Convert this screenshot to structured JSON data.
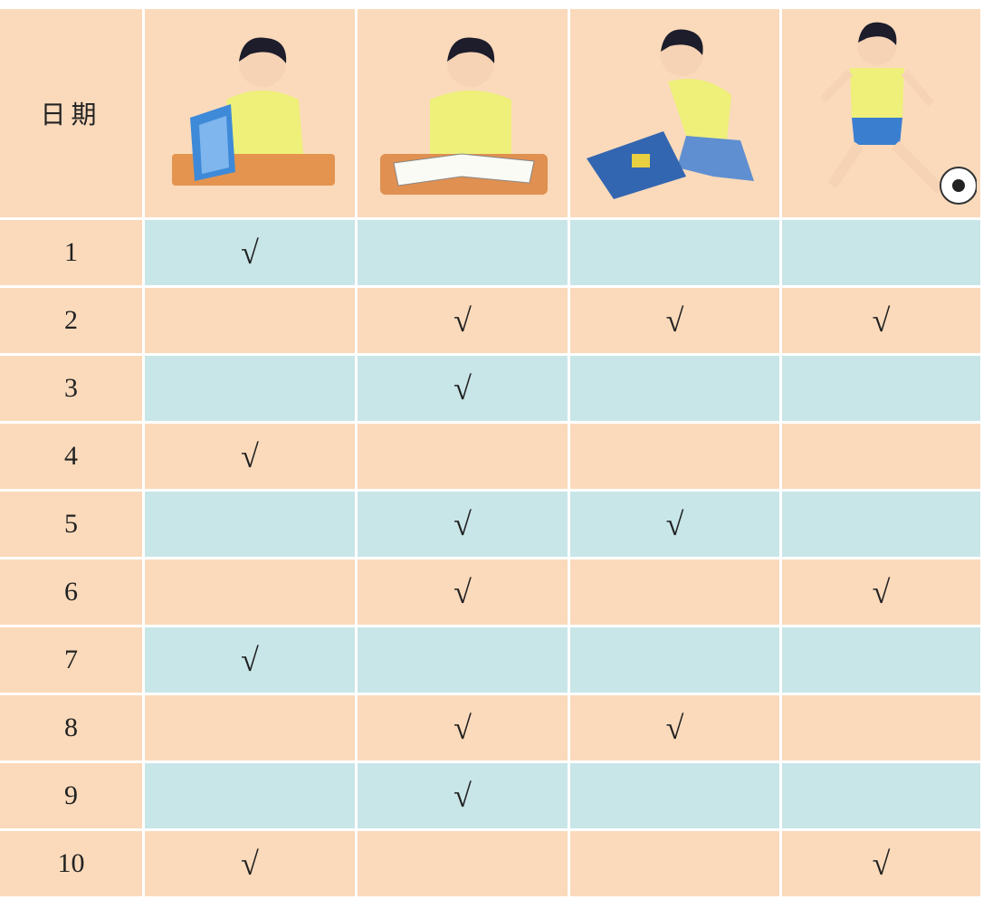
{
  "table": {
    "header": "日期",
    "rows": [
      [
        "1",
        "√",
        null,
        null,
        null
      ],
      [
        "2",
        null,
        "√",
        "√",
        "√"
      ],
      [
        "3",
        null,
        "√",
        null,
        null
      ],
      [
        "4",
        "√",
        null,
        null,
        null
      ],
      [
        "5",
        null,
        "√",
        "√",
        null
      ],
      [
        "6",
        null,
        "√",
        null,
        "√"
      ],
      [
        "7",
        "√",
        null,
        null,
        null
      ],
      [
        "8",
        null,
        "√",
        "√",
        null
      ],
      [
        "9",
        null,
        "√",
        null,
        null
      ],
      [
        "10",
        "√",
        null,
        null,
        "√"
      ]
    ]
  }
}
